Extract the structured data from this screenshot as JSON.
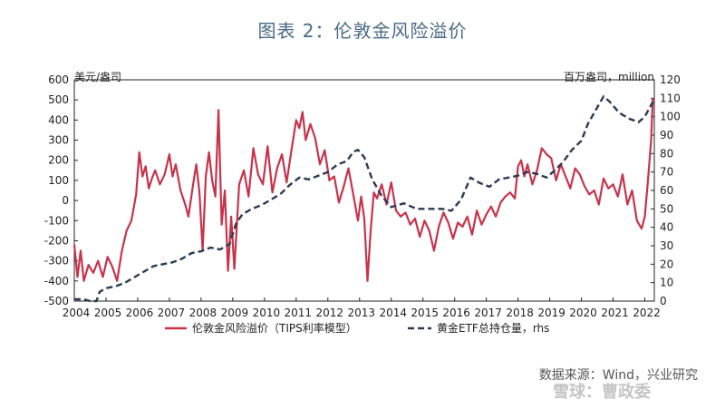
{
  "title": "图表 2：伦敦金风险溢价",
  "source": "数据来源：Wind，兴业研究",
  "watermark": "雪球：曹政委",
  "colors": {
    "premium": "#c8334a",
    "etf": "#2b3a52",
    "title": "#4a6a86"
  },
  "chart_data": {
    "type": "line",
    "y_left": {
      "label": "美元/盎司",
      "lim": [
        -500,
        600
      ],
      "ticks": [
        -500,
        -400,
        -300,
        -200,
        -100,
        0,
        100,
        200,
        300,
        400,
        500,
        600
      ]
    },
    "y_right": {
      "label": "百万盎司，million",
      "lim": [
        0,
        120
      ],
      "ticks": [
        0,
        10,
        20,
        30,
        40,
        50,
        60,
        70,
        80,
        90,
        100,
        110,
        120
      ]
    },
    "x": {
      "lim": [
        2004,
        2022.3
      ],
      "ticks": [
        "2004",
        "2005",
        "2006",
        "2007",
        "2008",
        "2009",
        "2010",
        "2011",
        "2012",
        "2013",
        "2014",
        "2015",
        "2016",
        "2017",
        "2018",
        "2019",
        "2020",
        "2021",
        "2022"
      ]
    },
    "legend_position": "bottom",
    "series": [
      {
        "name": "伦敦金风险溢价（TIPS利率模型）",
        "axis": "left",
        "x": [
          2004.0,
          2004.1,
          2004.2,
          2004.3,
          2004.45,
          2004.6,
          2004.75,
          2004.9,
          2005.05,
          2005.2,
          2005.35,
          2005.5,
          2005.65,
          2005.8,
          2005.95,
          2006.05,
          2006.15,
          2006.25,
          2006.35,
          2006.45,
          2006.55,
          2006.7,
          2006.85,
          2007.0,
          2007.1,
          2007.2,
          2007.35,
          2007.5,
          2007.6,
          2007.75,
          2007.85,
          2007.95,
          2008.05,
          2008.15,
          2008.25,
          2008.35,
          2008.45,
          2008.55,
          2008.65,
          2008.75,
          2008.85,
          2008.95,
          2009.05,
          2009.2,
          2009.35,
          2009.5,
          2009.65,
          2009.8,
          2009.95,
          2010.1,
          2010.25,
          2010.4,
          2010.55,
          2010.7,
          2010.85,
          2011.0,
          2011.1,
          2011.2,
          2011.3,
          2011.45,
          2011.6,
          2011.75,
          2011.9,
          2012.05,
          2012.2,
          2012.35,
          2012.5,
          2012.65,
          2012.8,
          2012.95,
          2013.05,
          2013.15,
          2013.25,
          2013.35,
          2013.45,
          2013.55,
          2013.7,
          2013.85,
          2014.0,
          2014.15,
          2014.3,
          2014.45,
          2014.6,
          2014.75,
          2014.9,
          2015.05,
          2015.2,
          2015.35,
          2015.5,
          2015.65,
          2015.8,
          2015.95,
          2016.1,
          2016.25,
          2016.4,
          2016.55,
          2016.7,
          2016.85,
          2017.0,
          2017.15,
          2017.3,
          2017.45,
          2017.6,
          2017.75,
          2017.9,
          2018.0,
          2018.1,
          2018.2,
          2018.3,
          2018.45,
          2018.6,
          2018.75,
          2018.9,
          2019.05,
          2019.2,
          2019.35,
          2019.5,
          2019.65,
          2019.8,
          2019.95,
          2020.1,
          2020.25,
          2020.4,
          2020.55,
          2020.7,
          2020.85,
          2021.0,
          2021.15,
          2021.3,
          2021.45,
          2021.6,
          2021.75,
          2021.9,
          2022.0,
          2022.1,
          2022.2,
          2022.25
        ],
        "y": [
          -220,
          -380,
          -250,
          -400,
          -320,
          -360,
          -300,
          -380,
          -280,
          -330,
          -400,
          -250,
          -150,
          -100,
          30,
          240,
          120,
          170,
          60,
          110,
          150,
          80,
          130,
          230,
          120,
          180,
          50,
          -20,
          -80,
          80,
          180,
          40,
          -250,
          120,
          240,
          100,
          20,
          450,
          -120,
          50,
          -350,
          -80,
          -340,
          80,
          150,
          20,
          260,
          130,
          80,
          270,
          40,
          160,
          230,
          90,
          250,
          400,
          360,
          440,
          300,
          380,
          310,
          180,
          250,
          100,
          120,
          -10,
          70,
          160,
          30,
          -100,
          20,
          -90,
          -400,
          -150,
          40,
          10,
          80,
          -20,
          90,
          -50,
          -80,
          -60,
          -120,
          -90,
          -180,
          -100,
          -150,
          -250,
          -130,
          -60,
          -110,
          -190,
          -110,
          -130,
          -80,
          -170,
          -50,
          -120,
          -70,
          -30,
          -80,
          -10,
          20,
          40,
          10,
          170,
          200,
          120,
          180,
          80,
          150,
          260,
          230,
          210,
          100,
          180,
          120,
          60,
          160,
          130,
          70,
          30,
          50,
          -20,
          110,
          60,
          80,
          20,
          130,
          -20,
          50,
          -100,
          -140,
          -80,
          100,
          300,
          510
        ]
      },
      {
        "name": "黄金ETF总持仓量，rhs",
        "axis": "right",
        "x": [
          2004.0,
          2004.3,
          2004.5,
          2004.7,
          2004.8,
          2005.0,
          2005.3,
          2005.6,
          2005.9,
          2006.2,
          2006.5,
          2006.8,
          2007.1,
          2007.4,
          2007.7,
          2008.0,
          2008.3,
          2008.6,
          2008.9,
          2009.1,
          2009.3,
          2009.6,
          2009.9,
          2010.2,
          2010.5,
          2010.8,
          2011.1,
          2011.4,
          2011.7,
          2012.0,
          2012.3,
          2012.6,
          2012.8,
          2012.95,
          2013.15,
          2013.4,
          2013.7,
          2014.0,
          2014.4,
          2014.8,
          2015.2,
          2015.6,
          2015.9,
          2016.2,
          2016.5,
          2016.8,
          2017.1,
          2017.4,
          2017.7,
          2018.0,
          2018.3,
          2018.6,
          2018.9,
          2019.1,
          2019.4,
          2019.7,
          2020.0,
          2020.2,
          2020.5,
          2020.7,
          2020.9,
          2021.2,
          2021.5,
          2021.8,
          2022.0,
          2022.25
        ],
        "y": [
          1,
          1,
          0,
          0,
          5,
          7,
          8,
          10,
          13,
          16,
          19,
          20,
          21,
          23,
          26,
          27,
          29,
          28,
          31,
          42,
          47,
          50,
          52,
          55,
          58,
          63,
          67,
          66,
          68,
          70,
          74,
          76,
          81,
          82,
          78,
          66,
          57,
          51,
          53,
          50,
          50,
          50,
          49,
          55,
          67,
          64,
          62,
          66,
          67,
          68,
          70,
          69,
          67,
          70,
          75,
          82,
          87,
          96,
          105,
          111,
          108,
          102,
          99,
          97,
          100,
          108
        ]
      }
    ]
  }
}
